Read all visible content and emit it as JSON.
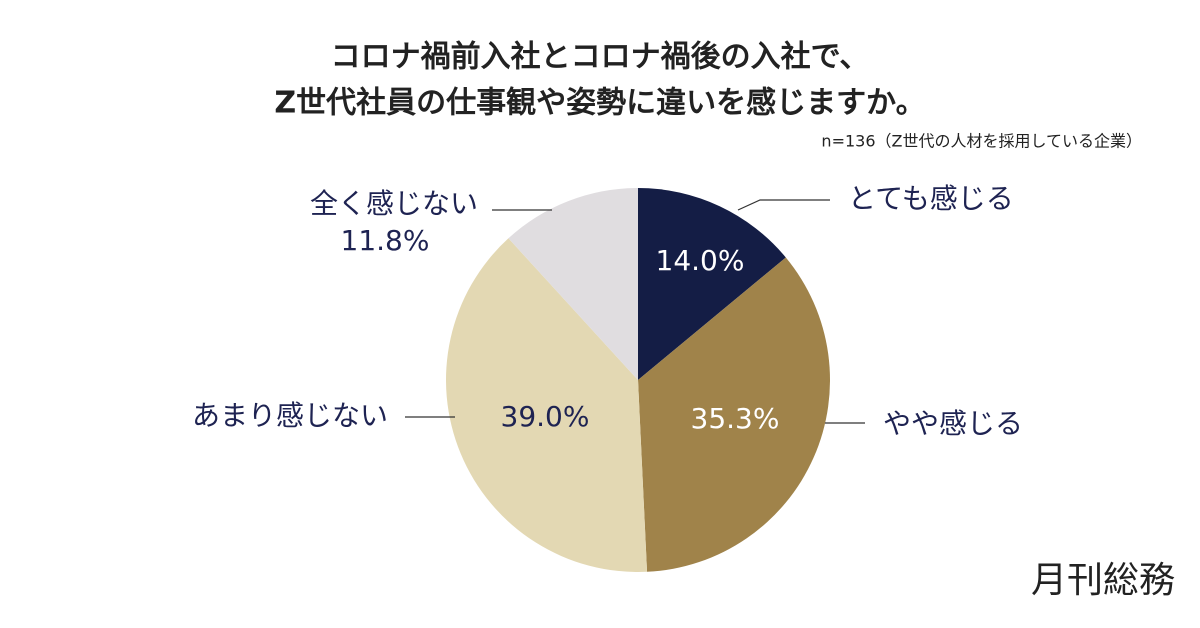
{
  "chart_data": {
    "type": "pie",
    "title": [
      "コロナ禍前入社とコロナ禍後の入社で、",
      "Z世代社員の仕事観や姿勢に違いを感じますか。"
    ],
    "subtitle": "n=136（Z世代の人材を採用している企業）",
    "categories": [
      "とても感じる",
      "やや感じる",
      "あまり感じない",
      "全く感じない"
    ],
    "values": [
      14.0,
      35.3,
      39.0,
      11.8
    ],
    "value_labels": [
      "14.0%",
      "35.3%",
      "39.0%",
      "11.8%"
    ],
    "colors": [
      "#141d45",
      "#a0834a",
      "#e3d8b3",
      "#e0dde0"
    ]
  },
  "logo": "月刊総務"
}
